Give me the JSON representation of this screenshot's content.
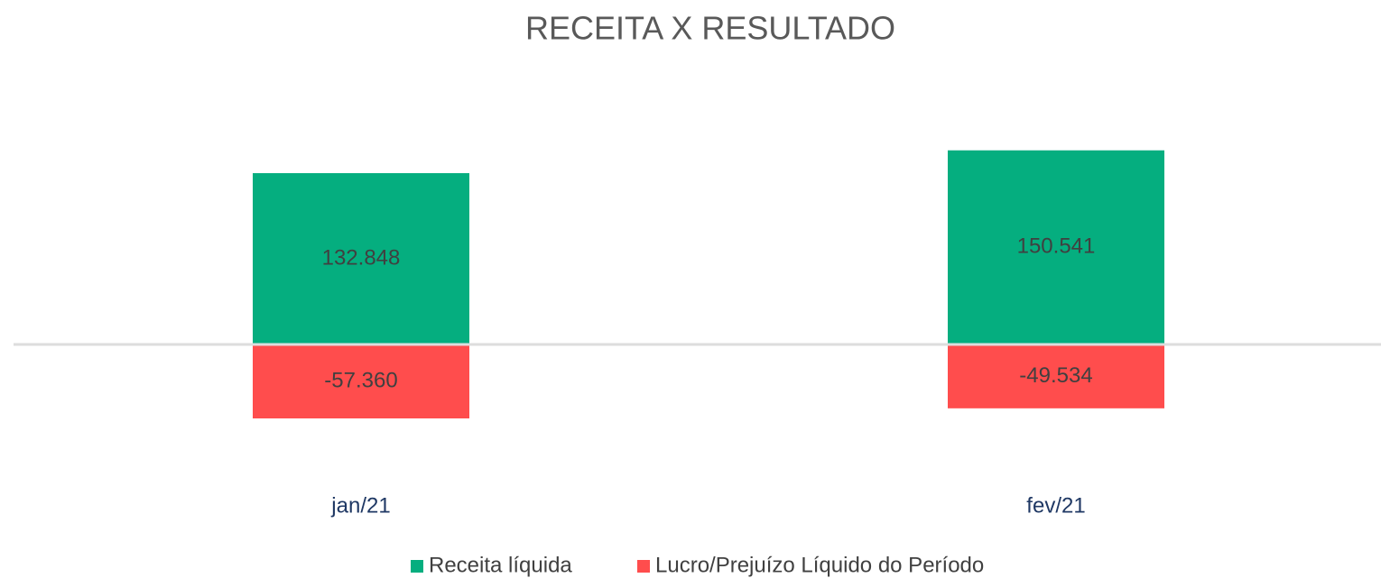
{
  "chart_data": {
    "type": "bar",
    "stacked": true,
    "title": "RECEITA X RESULTADO",
    "categories": [
      "jan/21",
      "fev/21"
    ],
    "series": [
      {
        "name": "Receita líquida",
        "color": "#05ae7f",
        "values": [
          132848,
          150541
        ],
        "value_labels": [
          "132.848",
          "150.541"
        ]
      },
      {
        "name": "Lucro/Prejuízo Líquido do Período",
        "color": "#ff4d4d",
        "values": [
          -57360,
          -49534
        ],
        "value_labels": [
          "-57.360",
          "-49.534"
        ]
      }
    ],
    "ylim": [
      -100000,
      200000
    ],
    "legend": "bottom"
  }
}
